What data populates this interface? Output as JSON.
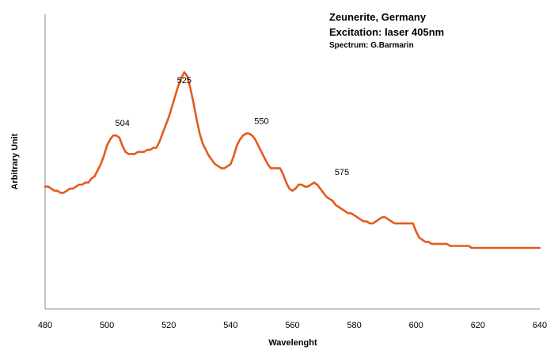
{
  "chart_data": {
    "type": "line",
    "title": "Zeunerite, Germany",
    "subtitle": "Excitation: laser 405nm",
    "credit": "Spectrum: G.Barmarin",
    "xlabel": "Wavelenght",
    "ylabel": "Arbitrary Unit",
    "xlim": [
      480,
      640
    ],
    "xticks": [
      "480",
      "500",
      "520",
      "540",
      "560",
      "580",
      "600",
      "620",
      "640"
    ],
    "ylim": [
      0,
      100
    ],
    "grid": false,
    "line_color": "#e55a1c",
    "peak_labels": [
      {
        "text": "504",
        "x": 505,
        "y": 67
      },
      {
        "text": "525",
        "x": 525,
        "y": 88
      },
      {
        "text": "550",
        "x": 550,
        "y": 68
      },
      {
        "text": "575",
        "x": 576,
        "y": 43
      }
    ],
    "series": [
      {
        "x": [
          480,
          481,
          482,
          483,
          484,
          485,
          486,
          487,
          488,
          489,
          490,
          491,
          492,
          493,
          494,
          495,
          496,
          497,
          498,
          499,
          500,
          501,
          502,
          503,
          504,
          505,
          506,
          507,
          508,
          509,
          510,
          511,
          512,
          513,
          514,
          515,
          516,
          517,
          518,
          519,
          520,
          521,
          522,
          523,
          524,
          525,
          526,
          527,
          528,
          529,
          530,
          531,
          532,
          533,
          534,
          535,
          536,
          537,
          538,
          539,
          540,
          541,
          542,
          543,
          544,
          545,
          546,
          547,
          548,
          549,
          550,
          551,
          552,
          553,
          554,
          555,
          556,
          557,
          558,
          559,
          560,
          561,
          562,
          563,
          564,
          565,
          566,
          567,
          568,
          569,
          570,
          571,
          572,
          573,
          574,
          575,
          576,
          577,
          578,
          579,
          580,
          581,
          582,
          583,
          584,
          585,
          586,
          587,
          588,
          589,
          590,
          591,
          592,
          593,
          594,
          595,
          596,
          597,
          598,
          599,
          600,
          601,
          602,
          603,
          604,
          605,
          606,
          607,
          608,
          609,
          610,
          611,
          612,
          613,
          614,
          615,
          616,
          617,
          618,
          619,
          620,
          621,
          622,
          623,
          624,
          625,
          626,
          627,
          628,
          629,
          630,
          631,
          632,
          633,
          634,
          635,
          636,
          637,
          638,
          639,
          640
        ],
        "y": [
          42,
          42,
          41,
          40,
          40,
          39,
          39,
          40,
          41,
          41,
          42,
          43,
          43,
          44,
          44,
          46,
          47,
          50,
          53,
          57,
          62,
          65,
          67,
          67,
          66,
          62,
          59,
          58,
          58,
          58,
          59,
          59,
          59,
          60,
          60,
          61,
          61,
          64,
          68,
          72,
          76,
          81,
          86,
          91,
          95,
          98,
          96,
          90,
          83,
          75,
          68,
          63,
          60,
          57,
          55,
          53,
          52,
          51,
          51,
          52,
          53,
          57,
          62,
          65,
          67,
          68,
          68,
          67,
          65,
          62,
          59,
          56,
          53,
          51,
          51,
          51,
          51,
          48,
          44,
          41,
          40,
          41,
          43,
          43,
          42,
          42,
          43,
          44,
          43,
          41,
          39,
          37,
          36,
          35,
          33,
          32,
          31,
          30,
          29,
          29,
          28,
          27,
          26,
          25,
          25,
          24,
          24,
          25,
          26,
          27,
          27,
          26,
          25,
          24,
          24,
          24,
          24,
          24,
          24,
          24,
          20,
          17,
          16,
          15,
          15,
          14,
          14,
          14,
          14,
          14,
          14,
          13,
          13,
          13,
          13,
          13,
          13,
          13,
          12,
          12,
          12,
          12,
          12,
          12,
          12,
          12,
          12,
          12,
          12,
          12,
          12,
          12,
          12,
          12,
          12,
          12,
          12,
          12,
          12,
          12,
          12
        ]
      }
    ]
  }
}
